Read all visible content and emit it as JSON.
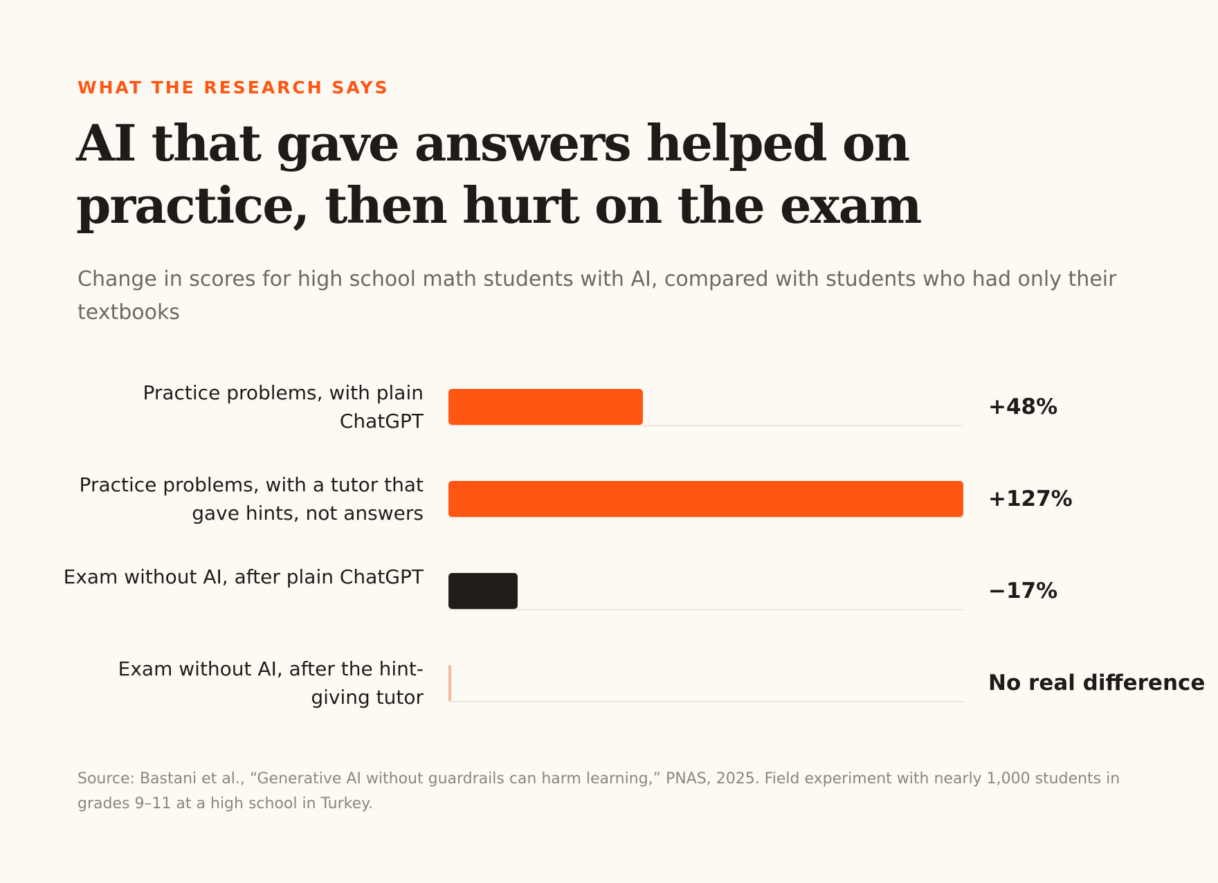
{
  "eyebrow": "WHAT THE RESEARCH SAYS",
  "title": "AI that gave answers helped on practice, then hurt on the exam",
  "subtitle": "Change in scores for high school math students with AI, compared with students who had only their textbooks",
  "source": "Source: Bastani et al., “Generative AI without guardrails can harm learning,” PNAS, 2025. Field experiment with nearly 1,000 students in grades 9–11 at a high school in Turkey.",
  "colors": {
    "accent": "#ff5614",
    "dark": "#221d1a",
    "faint": "#f2b99a",
    "background": "#fdfaf3"
  },
  "chart_data": {
    "type": "bar",
    "orientation": "horizontal",
    "scale": "bar length proportional to absolute change",
    "xlim": [
      0,
      127
    ],
    "grid": false,
    "categories": [
      "Practice problems, with plain ChatGPT",
      "Practice problems, with a tutor that gave hints, not answers",
      "Exam without AI, after plain ChatGPT",
      "Exam without AI, after the hint-giving tutor"
    ],
    "values": [
      48,
      127,
      -17,
      0
    ],
    "value_labels": [
      "+48%",
      "+127%",
      "−17%",
      "No real difference"
    ],
    "bar_colors": [
      "#ff5614",
      "#ff5614",
      "#221d1a",
      "#f2b99a"
    ]
  }
}
